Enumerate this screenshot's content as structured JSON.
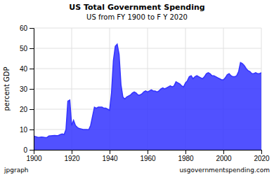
{
  "chart_data": {
    "type": "area",
    "title": "US Total Government Spending",
    "subtitle": "US from FY 1900 to F Y 2020",
    "ylabel": "percent GDP",
    "annotations": [
      "jpgraph",
      "usgovernmentspending.com"
    ],
    "color": "#3333ff",
    "grid": true,
    "xlim": [
      1900,
      2020
    ],
    "ylim": [
      0,
      60
    ],
    "xticks": [
      1900,
      1920,
      1940,
      1960,
      1980,
      2000,
      2020
    ],
    "yticks": [
      0,
      10,
      20,
      30,
      40,
      50,
      60
    ],
    "x": [
      1900,
      1901,
      1902,
      1903,
      1904,
      1905,
      1906,
      1907,
      1908,
      1909,
      1910,
      1911,
      1912,
      1913,
      1914,
      1915,
      1916,
      1917,
      1918,
      1919,
      1920,
      1921,
      1922,
      1923,
      1924,
      1925,
      1926,
      1927,
      1928,
      1929,
      1930,
      1931,
      1932,
      1933,
      1934,
      1935,
      1936,
      1937,
      1938,
      1939,
      1940,
      1941,
      1942,
      1943,
      1944,
      1945,
      1946,
      1947,
      1948,
      1949,
      1950,
      1951,
      1952,
      1953,
      1954,
      1955,
      1956,
      1957,
      1958,
      1959,
      1960,
      1961,
      1962,
      1963,
      1964,
      1965,
      1966,
      1967,
      1968,
      1969,
      1970,
      1971,
      1972,
      1973,
      1974,
      1975,
      1976,
      1977,
      1978,
      1979,
      1980,
      1981,
      1982,
      1983,
      1984,
      1985,
      1986,
      1987,
      1988,
      1989,
      1990,
      1991,
      1992,
      1993,
      1994,
      1995,
      1996,
      1997,
      1998,
      1999,
      2000,
      2001,
      2002,
      2003,
      2004,
      2005,
      2006,
      2007,
      2008,
      2009,
      2010,
      2011,
      2012,
      2013,
      2014,
      2015,
      2016,
      2017,
      2018,
      2019,
      2020
    ],
    "values": [
      6.8,
      6.5,
      6.2,
      6.1,
      6.3,
      6.2,
      6.0,
      6.1,
      6.8,
      6.9,
      7.0,
      7.1,
      7.0,
      7.1,
      7.5,
      7.8,
      7.5,
      10.0,
      24.0,
      24.5,
      12.0,
      14.5,
      12.0,
      11.0,
      10.5,
      10.3,
      10.0,
      10.0,
      10.0,
      9.9,
      12.0,
      16.5,
      21.0,
      20.5,
      21.0,
      21.0,
      21.0,
      20.5,
      20.5,
      20.0,
      19.5,
      28.0,
      44.0,
      51.0,
      52.0,
      47.0,
      32.0,
      26.0,
      25.0,
      26.0,
      26.5,
      27.0,
      28.0,
      28.5,
      28.0,
      27.0,
      27.0,
      27.5,
      28.5,
      29.0,
      28.5,
      29.0,
      29.5,
      29.0,
      29.0,
      28.5,
      29.0,
      30.0,
      30.5,
      30.0,
      30.5,
      31.0,
      31.5,
      31.0,
      31.5,
      33.5,
      33.0,
      32.5,
      31.5,
      31.0,
      33.0,
      34.0,
      36.0,
      36.5,
      35.0,
      36.0,
      36.5,
      36.0,
      35.5,
      35.0,
      36.0,
      37.5,
      38.0,
      37.5,
      36.5,
      36.5,
      36.0,
      35.5,
      35.0,
      34.5,
      34.5,
      35.5,
      37.0,
      37.5,
      36.5,
      36.0,
      36.0,
      36.5,
      38.5,
      43.0,
      42.5,
      41.5,
      40.0,
      39.0,
      38.5,
      37.5,
      37.5,
      38.0,
      37.5,
      37.5,
      38.0
    ]
  }
}
